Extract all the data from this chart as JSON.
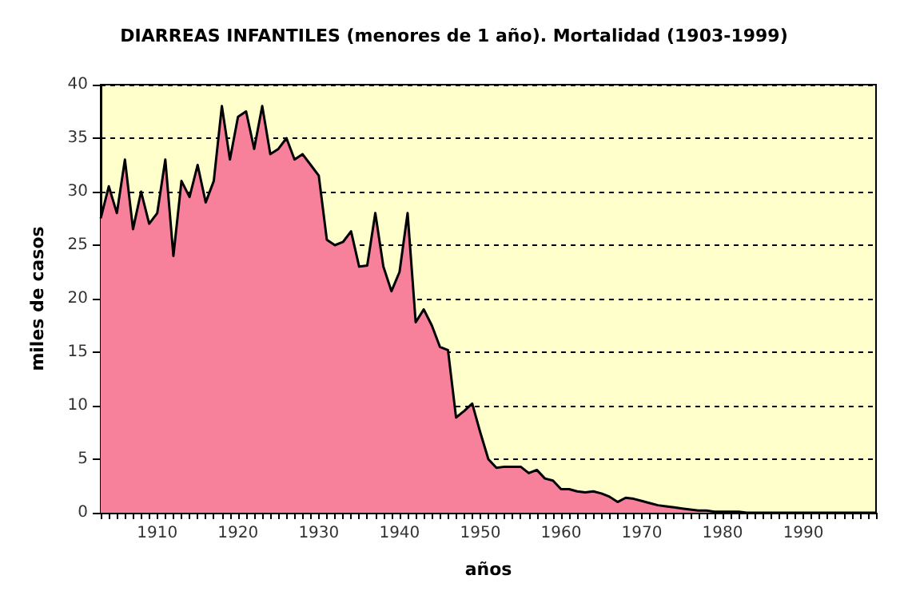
{
  "chart_data": {
    "type": "area",
    "title": "DIARREAS INFANTILES (menores de 1 año). Mortalidad (1903-1999)",
    "xlabel": "años",
    "ylabel": "miles de casos",
    "x": [
      1903,
      1904,
      1905,
      1906,
      1907,
      1908,
      1909,
      1910,
      1911,
      1912,
      1913,
      1914,
      1915,
      1916,
      1917,
      1918,
      1919,
      1920,
      1921,
      1922,
      1923,
      1924,
      1925,
      1926,
      1927,
      1928,
      1929,
      1930,
      1931,
      1932,
      1933,
      1934,
      1935,
      1936,
      1937,
      1938,
      1939,
      1940,
      1941,
      1942,
      1943,
      1944,
      1945,
      1946,
      1947,
      1948,
      1949,
      1950,
      1951,
      1952,
      1953,
      1954,
      1955,
      1956,
      1957,
      1958,
      1959,
      1960,
      1961,
      1962,
      1963,
      1964,
      1965,
      1966,
      1967,
      1968,
      1969,
      1970,
      1971,
      1972,
      1973,
      1974,
      1975,
      1976,
      1977,
      1978,
      1979,
      1980,
      1981,
      1982,
      1983,
      1984,
      1985,
      1986,
      1987,
      1988,
      1989,
      1990,
      1991,
      1992,
      1993,
      1994,
      1995,
      1996,
      1997,
      1998,
      1999
    ],
    "series": [
      {
        "color": "#f7819a",
        "values": [
          27.5,
          30.5,
          28,
          33,
          26.5,
          30,
          27,
          28,
          33,
          24,
          31,
          29.5,
          32.5,
          29,
          31,
          38,
          33,
          37,
          37.5,
          34,
          38,
          33.5,
          34,
          35,
          33,
          33.5,
          32.5,
          31.5,
          25.5,
          25,
          25.3,
          26.3,
          23,
          23.1,
          28,
          23,
          20.7,
          22.5,
          28,
          17.8,
          19,
          17.5,
          15.5,
          15.2,
          8.9,
          9.5,
          10.2,
          7.5,
          5,
          4.2,
          4.3,
          4.3,
          4.3,
          3.7,
          4,
          3.2,
          3,
          2.2,
          2.2,
          2,
          1.9,
          2,
          1.8,
          1.5,
          1,
          1.4,
          1.3,
          1.1,
          0.9,
          0.7,
          0.6,
          0.5,
          0.4,
          0.3,
          0.2,
          0.2,
          0.1,
          0.1,
          0.1,
          0.1,
          0,
          0,
          0,
          0,
          0,
          0,
          0,
          0,
          0,
          0,
          0,
          0,
          0,
          0,
          0,
          0,
          0
        ]
      }
    ],
    "xlim": [
      1903,
      1999
    ],
    "xticks": [
      1910,
      1920,
      1930,
      1940,
      1950,
      1960,
      1970,
      1980,
      1990
    ],
    "ylim": [
      0,
      40
    ],
    "yticks": [
      0,
      5,
      10,
      15,
      20,
      25,
      30,
      35,
      40
    ],
    "grid": "y",
    "marker": "none",
    "line_style": "solid"
  }
}
